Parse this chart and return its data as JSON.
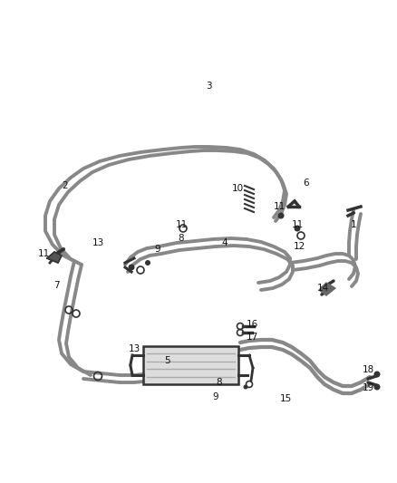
{
  "bg_color": "#ffffff",
  "line_color": "#888888",
  "dark_color": "#333333",
  "figsize": [
    4.38,
    5.33
  ],
  "dpi": 100,
  "label_positions": [
    [
      "1",
      390,
      248
    ],
    [
      "2",
      72,
      205
    ],
    [
      "3",
      230,
      95
    ],
    [
      "4",
      248,
      268
    ],
    [
      "5",
      185,
      398
    ],
    [
      "6",
      338,
      202
    ],
    [
      "7",
      62,
      315
    ],
    [
      "8",
      200,
      263
    ],
    [
      "8",
      242,
      422
    ],
    [
      "9",
      174,
      275
    ],
    [
      "9",
      238,
      438
    ],
    [
      "10",
      262,
      208
    ],
    [
      "11",
      48,
      280
    ],
    [
      "11",
      200,
      248
    ],
    [
      "11",
      308,
      228
    ],
    [
      "11",
      328,
      248
    ],
    [
      "12",
      330,
      272
    ],
    [
      "13",
      108,
      268
    ],
    [
      "13",
      148,
      385
    ],
    [
      "14",
      356,
      318
    ],
    [
      "15",
      315,
      440
    ],
    [
      "16",
      278,
      358
    ],
    [
      "17",
      278,
      372
    ],
    [
      "18",
      406,
      408
    ],
    [
      "19",
      406,
      428
    ]
  ]
}
